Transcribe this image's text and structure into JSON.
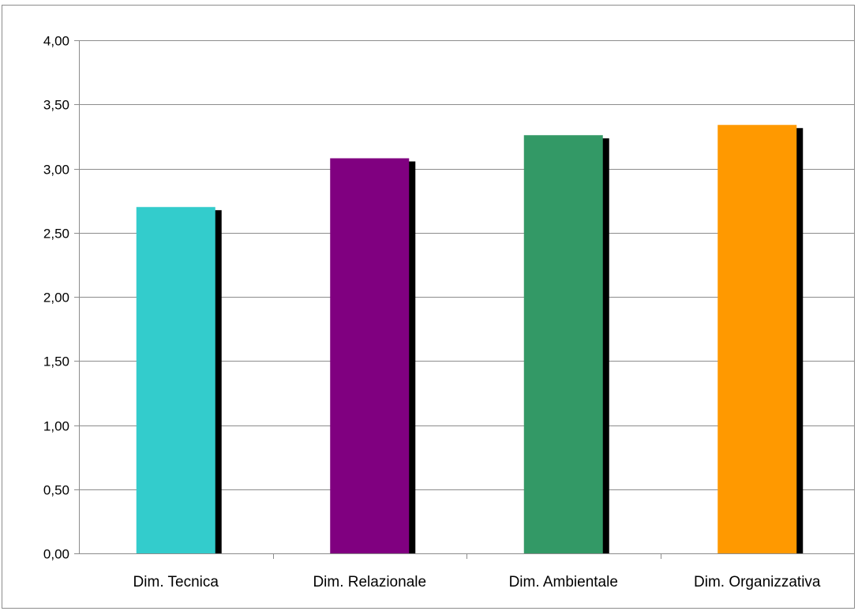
{
  "chart_data": {
    "type": "bar",
    "categories": [
      "Dim. Tecnica",
      "Dim. Relazionale",
      "Dim. Ambientale",
      "Dim. Organizzativa"
    ],
    "values": [
      2.7,
      3.08,
      3.26,
      3.34
    ],
    "colors": [
      "#33CCCC",
      "#800080",
      "#339966",
      "#FF9900"
    ],
    "shadow_color": "#000000",
    "yticks": [
      "0,00",
      "0,50",
      "1,00",
      "1,50",
      "2,00",
      "2,50",
      "3,00",
      "3,50",
      "4,00"
    ],
    "ylim": [
      0,
      4
    ],
    "ystep": 0.5,
    "grid": true,
    "legend": "none",
    "title": "",
    "xlabel": "",
    "ylabel": ""
  }
}
